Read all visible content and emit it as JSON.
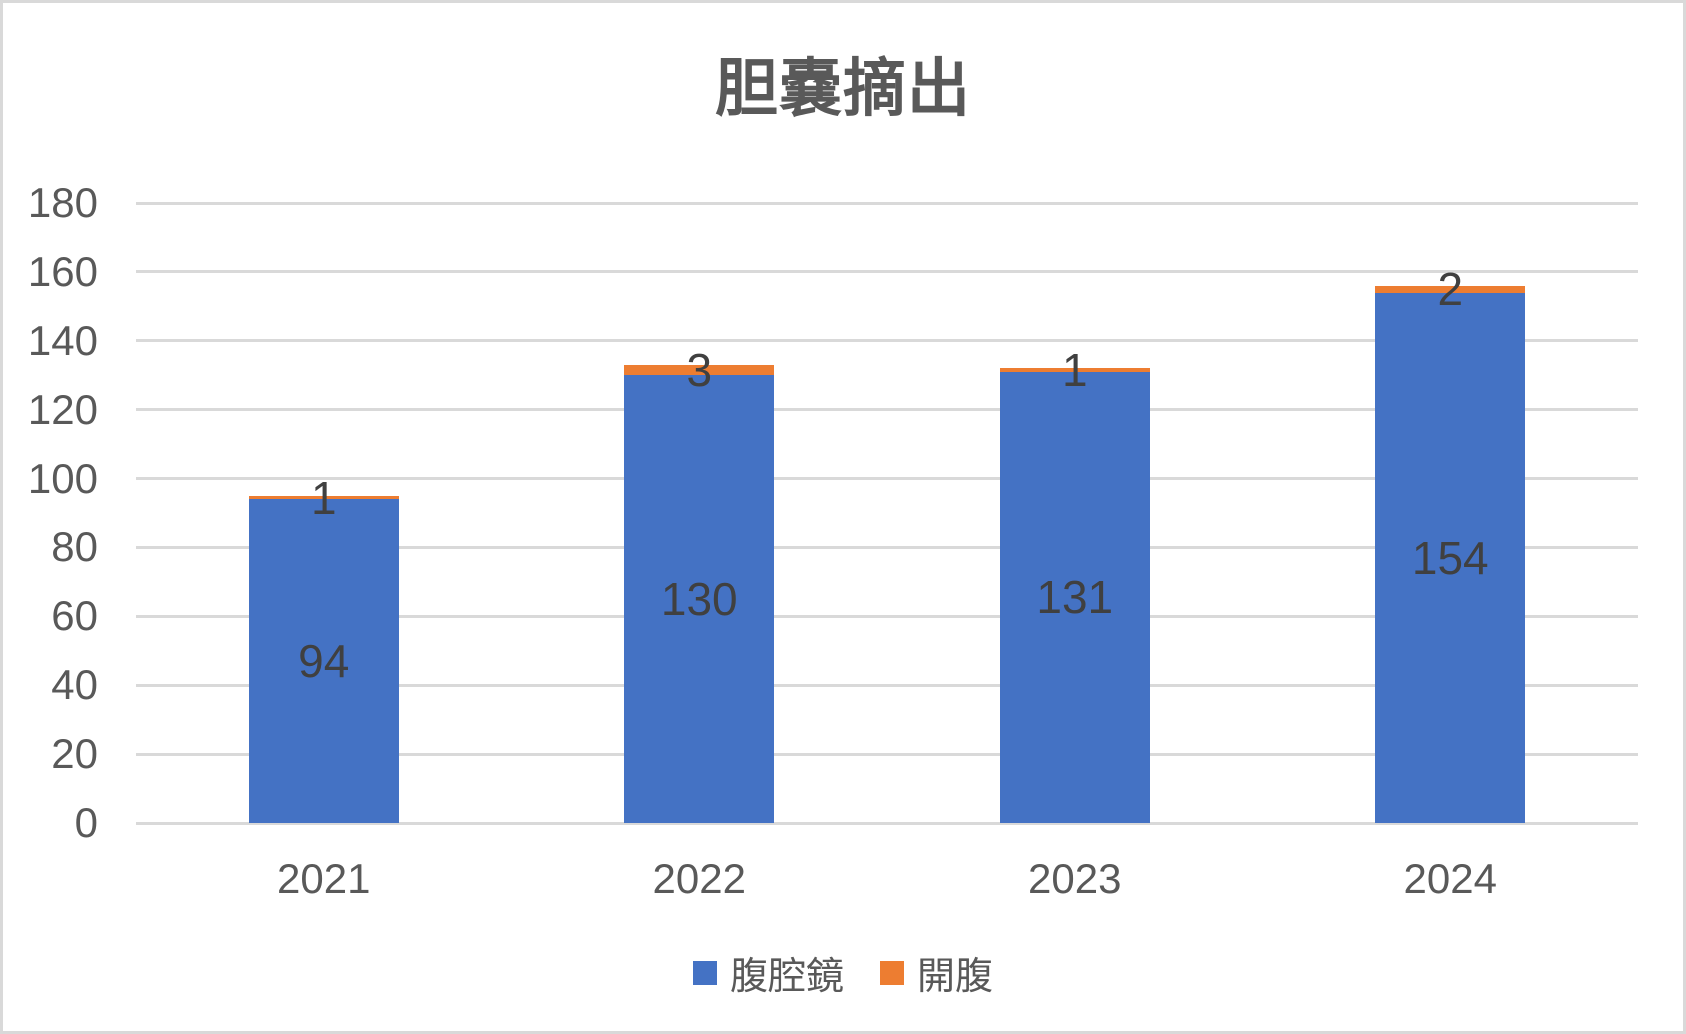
{
  "chart_data": {
    "type": "bar",
    "stacked": true,
    "title": "胆嚢摘出",
    "categories": [
      "2021",
      "2022",
      "2023",
      "2024"
    ],
    "series": [
      {
        "name": "腹腔鏡",
        "color": "#4472C4",
        "values": [
          94,
          130,
          131,
          154
        ]
      },
      {
        "name": "開腹",
        "color": "#ED7D31",
        "values": [
          1,
          3,
          1,
          2
        ]
      }
    ],
    "ylim": [
      0,
      180
    ],
    "yticks": [
      0,
      20,
      40,
      60,
      80,
      100,
      120,
      140,
      160,
      180
    ],
    "grid": true,
    "legend_position": "bottom",
    "data_labels": true
  },
  "colors": {
    "grid": "#D9D9D9",
    "axis_text": "#595959",
    "data_label_text": "#404040",
    "title_text": "#595959",
    "frame_border": "#D9D9D9",
    "background": "#FFFFFF"
  }
}
